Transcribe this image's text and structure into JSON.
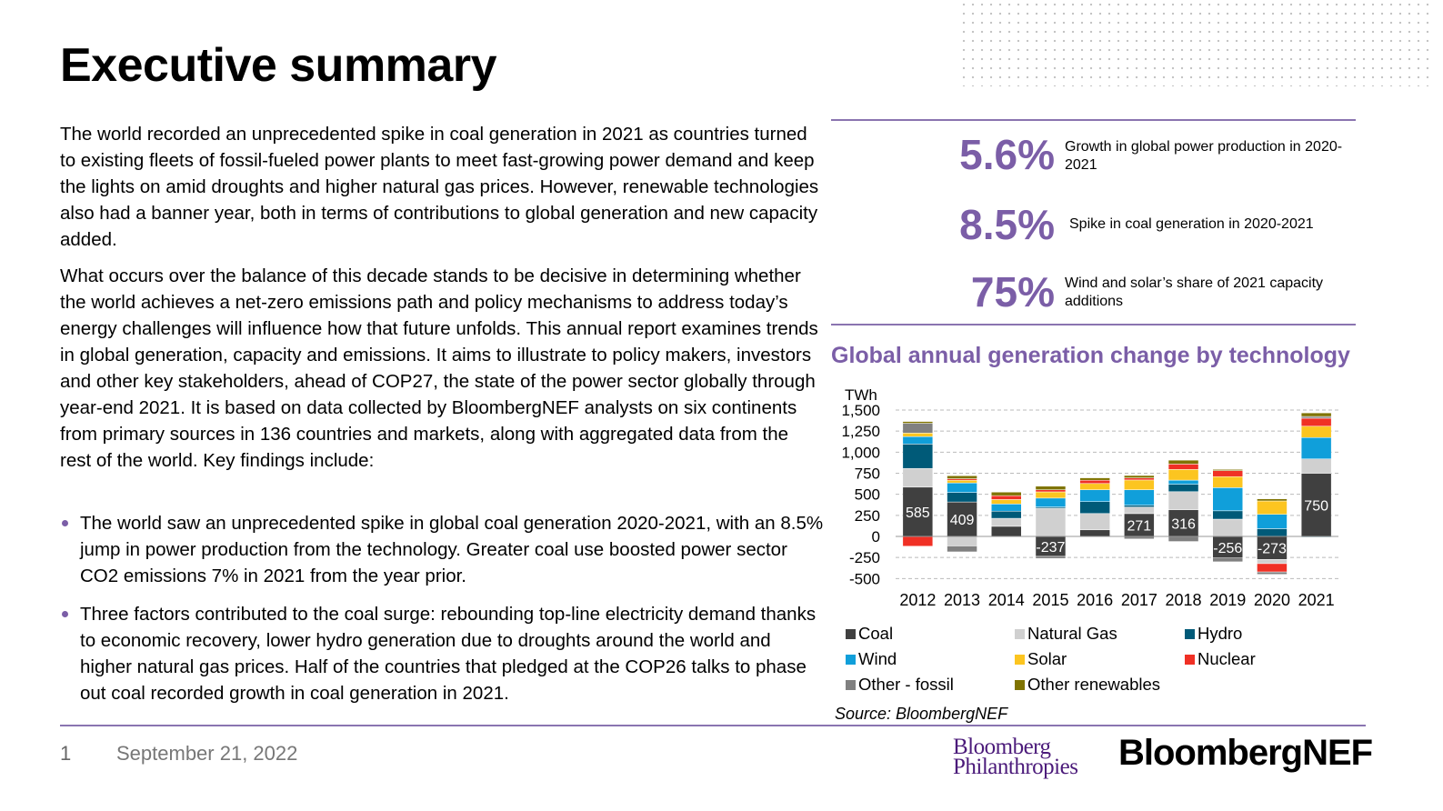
{
  "title": "Executive summary",
  "paragraphs": [
    "The world recorded an unprecedented spike in coal generation in 2021 as countries turned to existing fleets of fossil-fueled power plants to meet fast-growing power demand and keep the lights on amid droughts and higher natural gas prices. However, renewable technologies also had a banner year, both in terms of contributions to global generation and new capacity added.",
    "What occurs over the balance of this decade stands to be decisive in determining whether the world achieves a net-zero emissions path and policy mechanisms to address today’s energy challenges will influence how that future unfolds. This annual report examines trends in global generation, capacity and emissions. It aims to illustrate to policy makers, investors and other key stakeholders, ahead of COP27, the state of the power sector globally through year-end 2021. It is based on data collected by BloombergNEF analysts on six continents from primary sources in 136 countries and markets, along with aggregated data from the rest of the world. Key findings include:"
  ],
  "bullets": [
    "The world saw an unprecedented spike in global coal generation 2020-2021, with an 8.5% jump in power production from the technology. Greater coal use boosted power sector CO2 emissions 7% in 2021 from the year prior.",
    "Three factors contributed to the coal surge: rebounding top-line electricity demand thanks to economic recovery, lower hydro generation due to droughts around the world and higher natural gas prices. Half of the countries that pledged at the COP26 talks to phase out coal recorded growth in coal generation in 2021."
  ],
  "stats": [
    {
      "value": "5.6%",
      "desc": "Growth in global power production in 2020-2021"
    },
    {
      "value": "8.5%",
      "desc": "Spike in coal generation in 2020-2021"
    },
    {
      "value": "75%",
      "desc": "Wind and solar’s share of 2021 capacity additions"
    }
  ],
  "chart_data": {
    "type": "bar",
    "stacked": true,
    "title": "Global annual generation change by technology",
    "ylabel": "TWh",
    "ylim": [
      -500,
      1500
    ],
    "yticks": [
      "1,500",
      "1,250",
      "1,000",
      "750",
      "500",
      "250",
      "0",
      "-250",
      "-500"
    ],
    "ytick_values": [
      1500,
      1250,
      1000,
      750,
      500,
      250,
      0,
      -250,
      -500
    ],
    "grid": true,
    "legend_position": "bottom",
    "categories": [
      "2012",
      "2013",
      "2014",
      "2015",
      "2016",
      "2017",
      "2018",
      "2019",
      "2020",
      "2021"
    ],
    "series": [
      {
        "name": "Coal",
        "color": "#404040",
        "values": [
          585,
          409,
          120,
          -237,
          78,
          271,
          316,
          -256,
          -273,
          750
        ]
      },
      {
        "name": "Natural Gas",
        "color": "#d0d0d0",
        "values": [
          222,
          -113,
          95,
          335,
          194,
          78,
          215,
          205,
          -50,
          170
        ]
      },
      {
        "name": "Hydro",
        "color": "#005a78",
        "values": [
          290,
          113,
          85,
          14,
          141,
          21,
          88,
          99,
          92,
          -10
        ]
      },
      {
        "name": "Wind",
        "color": "#109fda",
        "values": [
          88,
          113,
          85,
          106,
          141,
          184,
          49,
          275,
          170,
          254
        ]
      },
      {
        "name": "Solar",
        "color": "#fcc520",
        "values": [
          42,
          32,
          53,
          74,
          74,
          116,
          127,
          131,
          159,
          134
        ]
      },
      {
        "name": "Nuclear",
        "color": "#f03025",
        "values": [
          -116,
          18,
          46,
          25,
          39,
          25,
          64,
          71,
          -99,
          95
        ]
      },
      {
        "name": "Other - fossil",
        "color": "#808080",
        "values": [
          116,
          -70,
          0,
          -25,
          0,
          -30,
          -60,
          -45,
          -28,
          21
        ]
      },
      {
        "name": "Other renewables",
        "color": "#7f7300",
        "values": [
          21,
          35,
          42,
          42,
          28,
          28,
          46,
          14,
          25,
          42
        ]
      }
    ],
    "data_labels": [
      "585",
      "409",
      null,
      "-237",
      null,
      "271",
      "316",
      "-256",
      "-273",
      "750"
    ],
    "source": "Source: BloombergNEF"
  },
  "footer": {
    "page": "1",
    "date": "September 21, 2022"
  },
  "logos": {
    "philanthropies": [
      "Bloomberg",
      "Philanthropies"
    ],
    "bnef": "BloombergNEF"
  },
  "colors": {
    "accent": "#7b5ea7",
    "rule": "#8a74b0"
  }
}
